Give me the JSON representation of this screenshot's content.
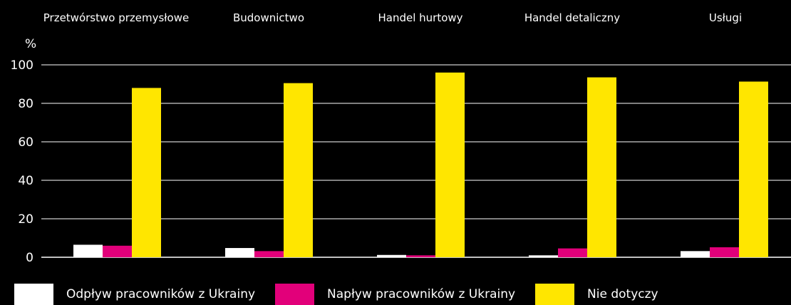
{
  "chart_data": {
    "type": "bar",
    "unit_label": "%",
    "categories": [
      "Przetwórstwo przemysłowe",
      "Budownictwo",
      "Handel hurtowy",
      "Handel detaliczny",
      "Usługi"
    ],
    "series": [
      {
        "name": "Odpływ pracowników z Ukrainy",
        "color": "#ffffff",
        "values": [
          6.5,
          4.8,
          1.2,
          1.0,
          3.2
        ]
      },
      {
        "name": "Napływ pracowników z Ukrainy",
        "color": "#e2007a",
        "values": [
          6.0,
          3.2,
          1.0,
          4.6,
          5.2
        ]
      },
      {
        "name": "Nie dotyczy",
        "color": "#ffe600",
        "values": [
          88.0,
          90.5,
          96.0,
          93.5,
          91.3
        ]
      }
    ],
    "y_ticks": [
      "0",
      "20",
      "40",
      "60",
      "80",
      "100"
    ],
    "ylim": [
      0,
      100
    ],
    "grid": true,
    "legend_position": "bottom"
  }
}
